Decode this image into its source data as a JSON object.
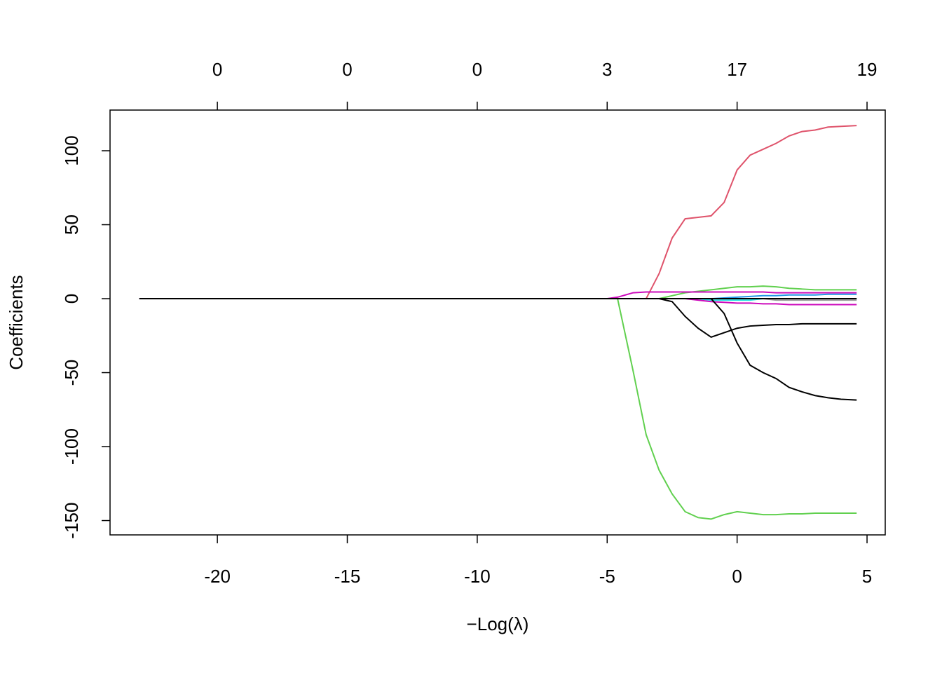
{
  "chart_data": {
    "type": "line",
    "xlabel": "−Log(λ)",
    "ylabel": "Coefficients",
    "x": [
      -23,
      -5,
      -4.6,
      -4,
      -3.5,
      -3,
      -2.5,
      -2,
      -1.5,
      -1,
      -0.5,
      0,
      0.5,
      1,
      1.5,
      2,
      2.5,
      3,
      3.5,
      4,
      4.6
    ],
    "series": [
      {
        "color": "#DF536B",
        "values": [
          0,
          0,
          0,
          0,
          0,
          17,
          41,
          54,
          55,
          56,
          65,
          87,
          97,
          101,
          105,
          110,
          113,
          114,
          116,
          116.5,
          117
        ]
      },
      {
        "color": "#61D04F",
        "values": [
          0,
          0,
          0,
          -49,
          -92,
          -116,
          -132,
          -144,
          -148,
          -149,
          -146,
          -144,
          -145,
          -146,
          -146,
          -145.5,
          -145.5,
          -145,
          -145,
          -145,
          -145
        ]
      },
      {
        "color": "#61D04F",
        "values": [
          0,
          0,
          0,
          0,
          0,
          0,
          2,
          4,
          5,
          6,
          7,
          8,
          8,
          8.5,
          8,
          7,
          6.5,
          6,
          6,
          6,
          6
        ]
      },
      {
        "color": "#2297E6",
        "values": [
          0,
          0,
          0,
          0,
          0,
          0,
          0,
          0,
          0,
          0,
          0.5,
          1,
          1.5,
          2,
          2,
          2.5,
          2.5,
          2.5,
          3,
          3,
          3
        ]
      },
      {
        "color": "#28E2E5",
        "values": [
          0,
          0,
          0,
          0,
          0,
          0,
          0,
          0,
          0,
          -1,
          -1,
          -1,
          -1,
          0,
          0,
          0,
          0,
          0,
          0,
          0,
          0
        ]
      },
      {
        "color": "#9E9E9E",
        "values": [
          0,
          0,
          0,
          0,
          0,
          0,
          0,
          0,
          0,
          0,
          0,
          0,
          0,
          0,
          -1,
          -1,
          -1,
          -1,
          -1,
          -1,
          -1
        ]
      },
      {
        "color": "#CD0BBC",
        "values": [
          0,
          0,
          1,
          4,
          4.5,
          4.5,
          4.5,
          4.5,
          4.5,
          4.5,
          4.5,
          4.5,
          4.5,
          4.5,
          4,
          4,
          4,
          4,
          4,
          4,
          4
        ]
      },
      {
        "color": "#CD0BBC",
        "values": [
          0,
          0,
          0,
          0,
          0,
          0,
          0,
          0,
          -1,
          -2,
          -2.5,
          -3,
          -3,
          -3.5,
          -3.5,
          -4,
          -4,
          -4,
          -4,
          -4,
          -4
        ]
      },
      {
        "color": "#000000",
        "values": [
          0,
          0,
          0,
          0,
          0,
          0,
          -2,
          -12,
          -20,
          -26,
          -23,
          -20,
          -18.5,
          -18,
          -17.5,
          -17.5,
          -17,
          -17,
          -17,
          -17,
          -17
        ]
      },
      {
        "color": "#000000",
        "values": [
          0,
          0,
          0,
          0,
          0,
          0,
          0,
          0,
          0,
          0,
          -10,
          -30,
          -45,
          -50,
          -54,
          -60,
          -63,
          -65.5,
          -67,
          -68,
          -68.5
        ]
      },
      {
        "color": "#000000",
        "values": [
          0,
          0,
          0,
          0,
          0,
          0,
          0,
          0,
          0,
          0,
          0,
          0,
          0,
          0,
          0,
          0,
          0,
          0,
          0,
          0,
          0
        ]
      }
    ],
    "xlim": [
      -24.13,
      5.7
    ],
    "ylim": [
      -159.7,
      127.5
    ],
    "xticks": [
      -20,
      -15,
      -10,
      -5,
      0,
      5
    ],
    "yticks": [
      -150,
      -100,
      -50,
      0,
      50,
      100
    ],
    "x2ticks": [
      {
        "value": -20,
        "label": "0"
      },
      {
        "value": -15,
        "label": "0"
      },
      {
        "value": -10,
        "label": "0"
      },
      {
        "value": -5,
        "label": "3"
      },
      {
        "value": 0,
        "label": "17"
      },
      {
        "value": 5,
        "label": "19"
      }
    ]
  }
}
